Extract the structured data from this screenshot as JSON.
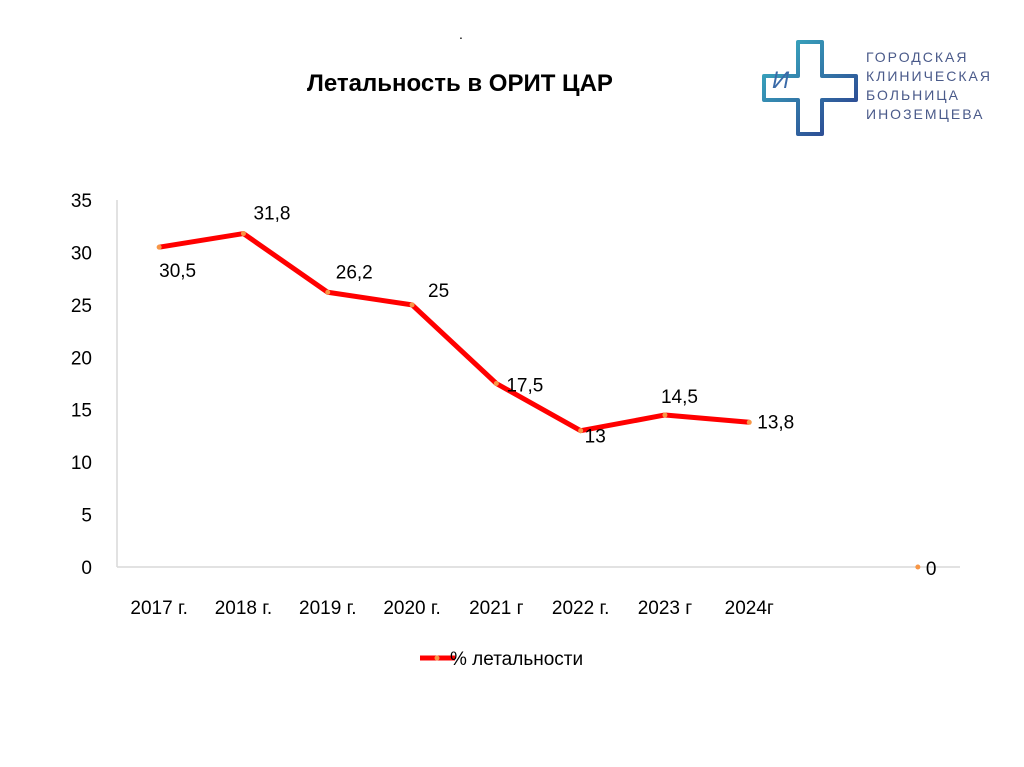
{
  "header": {
    "dot": "."
  },
  "logo": {
    "lines": [
      "ГОРОДСКАЯ",
      "КЛИНИЧЕСКАЯ",
      "БОЛЬНИЦА",
      "ИНОЗЕМЦЕВА"
    ],
    "mark": "И"
  },
  "chart_data": {
    "type": "line",
    "title": "Летальность в ОРИТ ЦАР",
    "categories": [
      "2017 г.",
      "2018 г.",
      "2019 г.",
      "2020 г.",
      "2021 г",
      "2022 г.",
      "2023 г",
      "2024г",
      "",
      ""
    ],
    "series": [
      {
        "name": "% летальности",
        "values": [
          30.5,
          31.8,
          26.2,
          25,
          17.5,
          13,
          14.5,
          13.8,
          null,
          0
        ],
        "labels": [
          "30,5",
          "31,8",
          "26,2",
          "25",
          "17,5",
          "13",
          "14,5",
          "13,8",
          "",
          "0"
        ],
        "color": "#ff0000"
      }
    ],
    "ylim": [
      0,
      35
    ],
    "yticks": [
      0,
      5,
      10,
      15,
      20,
      25,
      30,
      35
    ],
    "grid": false,
    "legend": "bottom",
    "xlabel": "",
    "ylabel": ""
  }
}
